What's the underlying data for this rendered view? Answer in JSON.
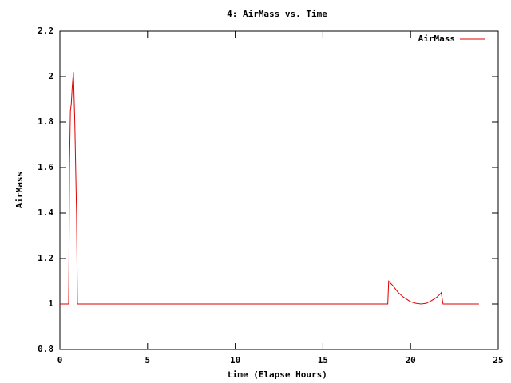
{
  "chart_data": {
    "type": "line",
    "title": "4: AirMass vs. Time",
    "x_label": "time (Elapse Hours)",
    "y_label": "AirMass",
    "x": [
      0,
      0.5,
      0.52,
      0.55,
      0.6,
      0.65,
      0.7,
      0.77,
      0.85,
      0.95,
      1.0,
      18.7,
      18.75,
      19.0,
      19.3,
      19.6,
      20.0,
      20.3,
      20.6,
      20.9,
      21.2,
      21.5,
      21.7,
      21.75,
      21.85,
      23.9
    ],
    "series": [
      {
        "name": "AirMass",
        "color": "#dd0000",
        "values": [
          1,
          1,
          1.2,
          1.62,
          1.85,
          1.88,
          1.95,
          2.02,
          1.8,
          1.4,
          1,
          1,
          1.1,
          1.08,
          1.05,
          1.03,
          1.01,
          1.003,
          1.0,
          1.003,
          1.015,
          1.03,
          1.045,
          1.05,
          1,
          1
        ]
      }
    ],
    "xlim": [
      0,
      25
    ],
    "xticks": [
      0,
      5,
      10,
      15,
      20,
      25
    ],
    "ylim": [
      0.8,
      2.2
    ],
    "yticks": [
      0.8,
      1,
      1.2,
      1.4,
      1.6,
      1.8,
      2,
      2.2
    ],
    "grid": false,
    "legend": "top-right"
  }
}
